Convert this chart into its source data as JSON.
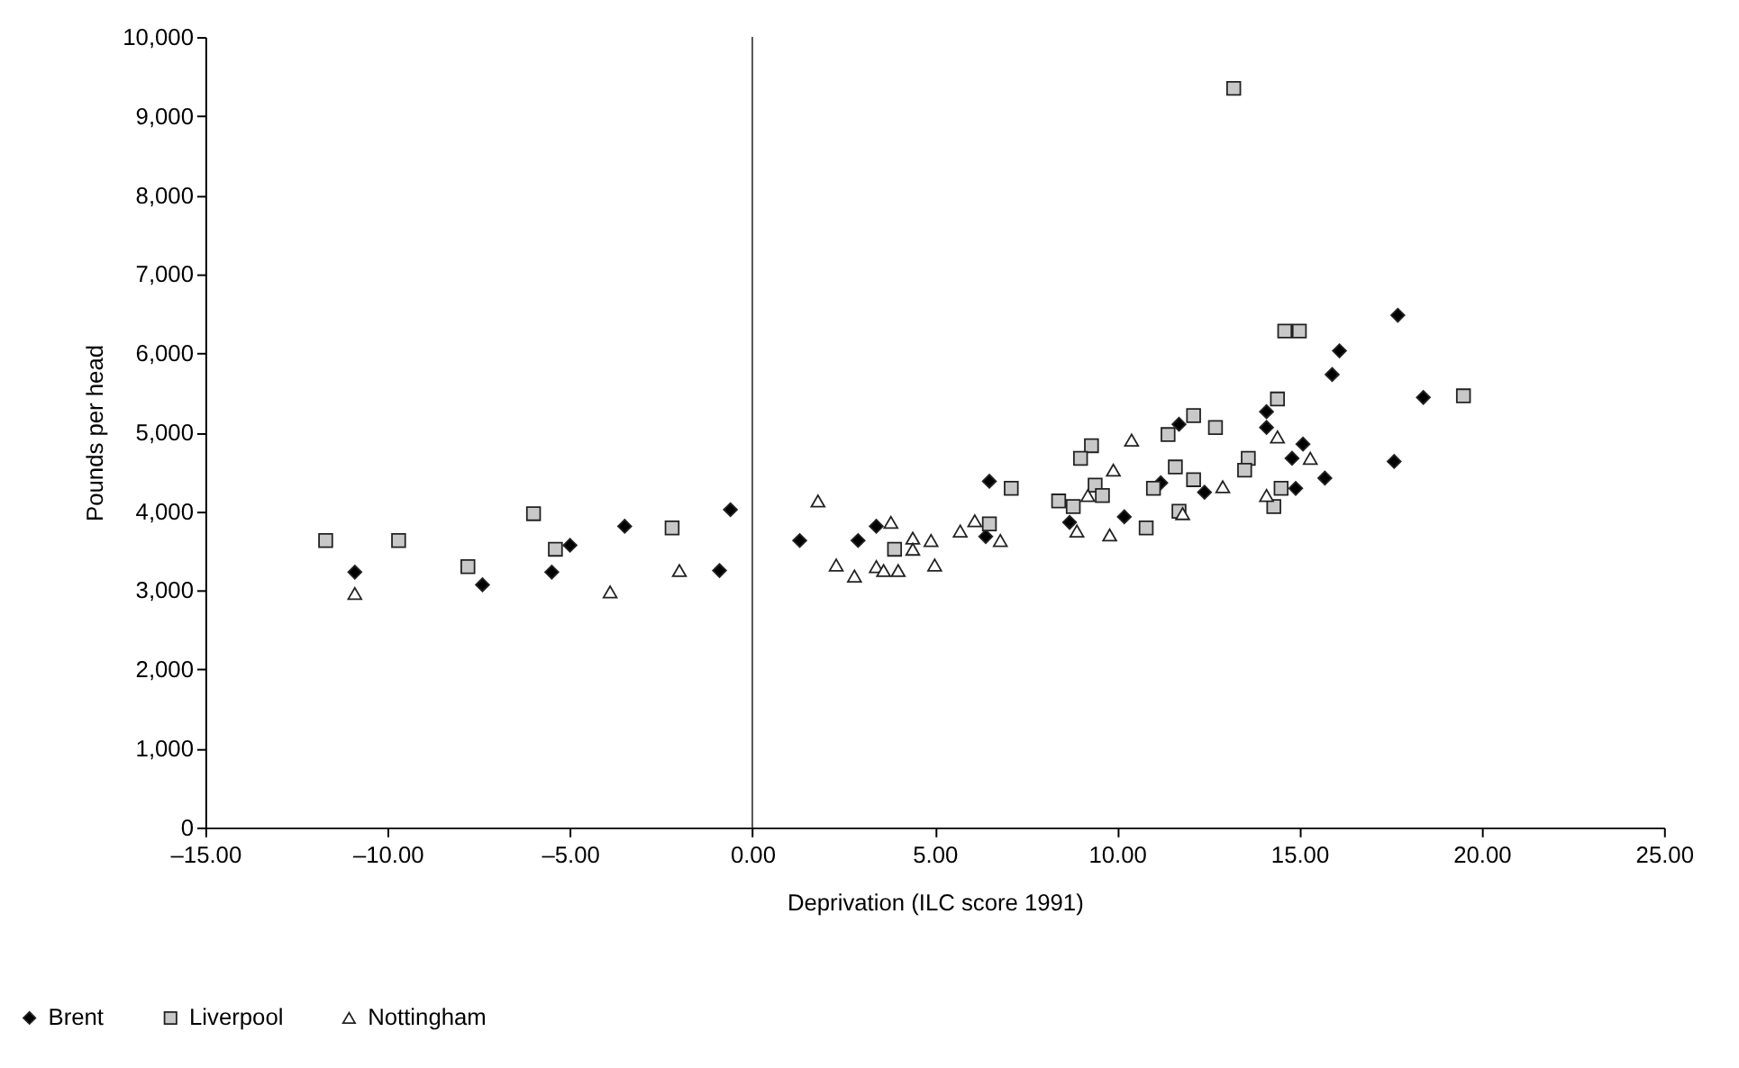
{
  "chart_data": {
    "type": "scatter",
    "xlabel": "Deprivation (ILC score 1991)",
    "ylabel": "Pounds per head",
    "xlim": [
      -15,
      25
    ],
    "ylim": [
      0,
      10000
    ],
    "xticks": [
      {
        "value": -15,
        "label": "–15.00"
      },
      {
        "value": -10,
        "label": "–10.00"
      },
      {
        "value": -5,
        "label": "–5.00"
      },
      {
        "value": 0,
        "label": "0.00"
      },
      {
        "value": 5,
        "label": "5.00"
      },
      {
        "value": 10,
        "label": "10.00"
      },
      {
        "value": 15,
        "label": "15.00"
      },
      {
        "value": 20,
        "label": "20.00"
      },
      {
        "value": 25,
        "label": "25.00"
      }
    ],
    "yticks": [
      0,
      {
        "value": 1000,
        "label": "1,000"
      },
      {
        "value": 2000,
        "label": "2,000"
      },
      {
        "value": 3000,
        "label": "3,000"
      },
      {
        "value": 4000,
        "label": "4,000"
      },
      {
        "value": 5000,
        "label": "5,000"
      },
      {
        "value": 6000,
        "label": "6,000"
      },
      {
        "value": 7000,
        "label": "7,000"
      },
      {
        "value": 8000,
        "label": "8,000"
      },
      {
        "value": 9000,
        "label": "9,000"
      },
      {
        "value": 10000,
        "label": "10,000"
      }
    ],
    "grid": false,
    "legend": "bottom left",
    "ref_lines": [
      {
        "axis": "x",
        "value": 0,
        "color": "#555555"
      }
    ],
    "series": [
      {
        "name": "Brent",
        "color": "#000000",
        "marker": "diamond",
        "x": [
          -10.9,
          -7.4,
          -5.5,
          -5.0,
          -3.5,
          -0.9,
          -0.6,
          1.3,
          2.9,
          3.4,
          6.5,
          6.4,
          8.7,
          10.2,
          11.2,
          11.7,
          12.4,
          14.1,
          14.1,
          17.7,
          16.1,
          15.9,
          18.4,
          15.1,
          14.8,
          15.7,
          17.6,
          14.9
        ],
        "values": [
          3230,
          3070,
          3230,
          3570,
          3810,
          3250,
          4020,
          3630,
          3630,
          3810,
          4380,
          3680,
          3860,
          3930,
          4360,
          5100,
          4240,
          5260,
          5060,
          6480,
          6030,
          5730,
          5440,
          4850,
          4670,
          4420,
          4630,
          4290
        ]
      },
      {
        "name": "Liverpool",
        "color": "#c8c8c8",
        "marker": "square",
        "x": [
          -11.7,
          -9.7,
          -7.8,
          -6.0,
          -5.4,
          -2.2,
          3.9,
          6.5,
          7.1,
          8.4,
          8.8,
          9.3,
          9.0,
          9.4,
          9.6,
          10.8,
          11.0,
          11.4,
          12.1,
          12.7,
          11.6,
          12.1,
          11.7,
          13.6,
          13.5,
          14.6,
          15.0,
          14.4,
          19.5,
          14.5,
          14.3,
          13.2
        ],
        "values": [
          3630,
          3630,
          3300,
          3970,
          3520,
          3790,
          3520,
          3840,
          4290,
          4130,
          4060,
          4830,
          4670,
          4330,
          4200,
          3790,
          4290,
          4970,
          5210,
          5060,
          4560,
          4400,
          4000,
          4670,
          4520,
          6280,
          6280,
          5420,
          5460,
          4290,
          4060,
          9350
        ]
      },
      {
        "name": "Nottingham",
        "color": "#ffffff",
        "marker": "triangle",
        "x": [
          -10.9,
          -3.9,
          -2.0,
          1.8,
          2.3,
          2.8,
          3.8,
          3.4,
          3.6,
          4.0,
          4.4,
          4.4,
          4.9,
          5.0,
          5.7,
          6.1,
          6.8,
          8.9,
          9.2,
          9.9,
          10.4,
          9.8,
          11.8,
          12.9,
          14.1,
          14.4,
          15.3
        ],
        "values": [
          2960,
          2980,
          3250,
          4130,
          3320,
          3180,
          3860,
          3300,
          3250,
          3250,
          3660,
          3520,
          3630,
          3320,
          3750,
          3880,
          3630,
          3750,
          4200,
          4520,
          4900,
          3700,
          3970,
          4310,
          4200,
          4940,
          4670
        ]
      }
    ]
  }
}
